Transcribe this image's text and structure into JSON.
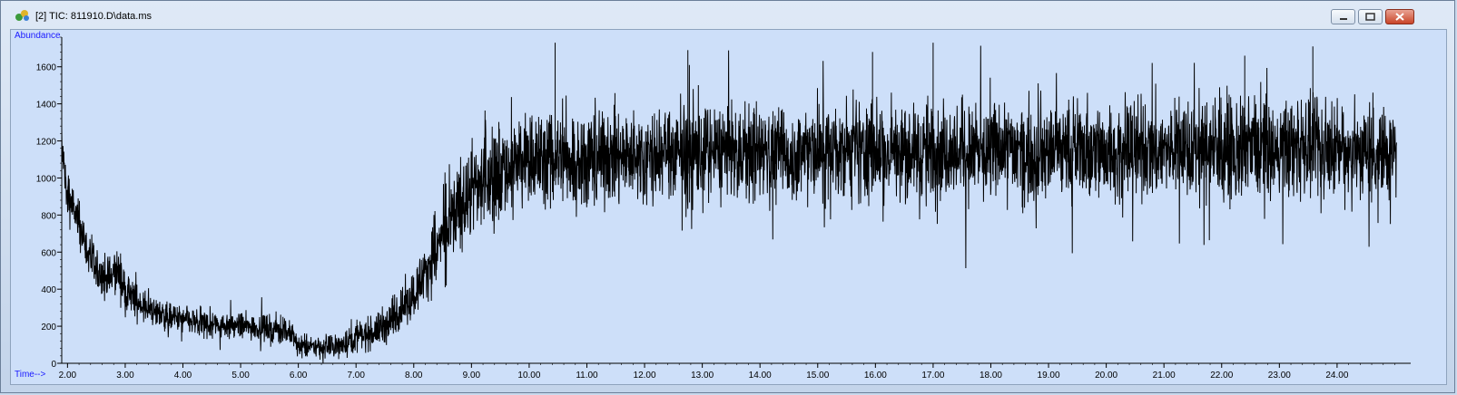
{
  "window": {
    "title": "[2] TIC: 811910.D\\data.ms",
    "icon": "chromatogram-app-icon",
    "buttons": [
      "minimize-icon",
      "restore-icon",
      "close-icon"
    ]
  },
  "colors": {
    "plot_background": "#cddff9",
    "trace": "#000000",
    "axis_label": "#1a1aff"
  },
  "chart_data": {
    "type": "line",
    "title": "",
    "xlabel": "Time-->",
    "ylabel": "Abundance",
    "xlim": [
      1.9,
      25.15
    ],
    "ylim": [
      0,
      1760
    ],
    "x_ticks": [
      "2.00",
      "3.00",
      "4.00",
      "5.00",
      "6.00",
      "7.00",
      "8.00",
      "9.00",
      "10.00",
      "11.00",
      "12.00",
      "13.00",
      "14.00",
      "15.00",
      "16.00",
      "17.00",
      "18.00",
      "19.00",
      "20.00",
      "21.00",
      "22.00",
      "23.00",
      "24.00"
    ],
    "y_ticks": [
      "0",
      "200",
      "400",
      "600",
      "800",
      "1000",
      "1200",
      "1400",
      "1600"
    ],
    "grid": false,
    "legend": "none",
    "series": [
      {
        "x": [
          1.9,
          2.0,
          2.25,
          2.5,
          2.75,
          2.85,
          3.0,
          3.25,
          3.5,
          3.75,
          4.0,
          4.5,
          5.0,
          5.5,
          5.75,
          5.9,
          6.0,
          6.25,
          6.5,
          6.75,
          7.0,
          7.25,
          7.5,
          7.75,
          8.0,
          8.25,
          8.5,
          8.75,
          9.0,
          9.25,
          9.5,
          9.75,
          10.0,
          10.5,
          11.0,
          12.0,
          13.0,
          14.0,
          15.0,
          16.0,
          17.0,
          18.0,
          19.0,
          20.0,
          21.0,
          22.0,
          23.0,
          24.0,
          25.15
        ],
        "y": [
          1150,
          920,
          700,
          480,
          450,
          520,
          380,
          320,
          280,
          250,
          230,
          210,
          200,
          190,
          180,
          150,
          90,
          85,
          90,
          100,
          140,
          160,
          200,
          280,
          380,
          520,
          680,
          820,
          930,
          1000,
          1040,
          1070,
          1090,
          1100,
          1110,
          1120,
          1130,
          1130,
          1140,
          1140,
          1150,
          1150,
          1150,
          1150,
          1150,
          1150,
          1150,
          1150,
          1150
        ],
        "noise_amplitude": [
          80,
          110,
          100,
          90,
          90,
          100,
          80,
          70,
          65,
          60,
          60,
          55,
          55,
          55,
          55,
          50,
          45,
          45,
          45,
          55,
          60,
          65,
          75,
          85,
          100,
          130,
          160,
          180,
          190,
          200,
          200,
          200,
          200,
          200,
          200,
          200,
          200,
          200,
          200,
          200,
          200,
          200,
          200,
          200,
          200,
          200,
          200,
          200,
          200
        ]
      }
    ],
    "spikes": [
      {
        "x": 10.45,
        "y": 1730
      },
      {
        "x": 17.0,
        "y": 1730
      },
      {
        "x": 23.58,
        "y": 1710
      },
      {
        "x": 22.4,
        "y": 1660
      },
      {
        "x": 15.95,
        "y": 1680
      },
      {
        "x": 12.75,
        "y": 1690
      }
    ]
  }
}
